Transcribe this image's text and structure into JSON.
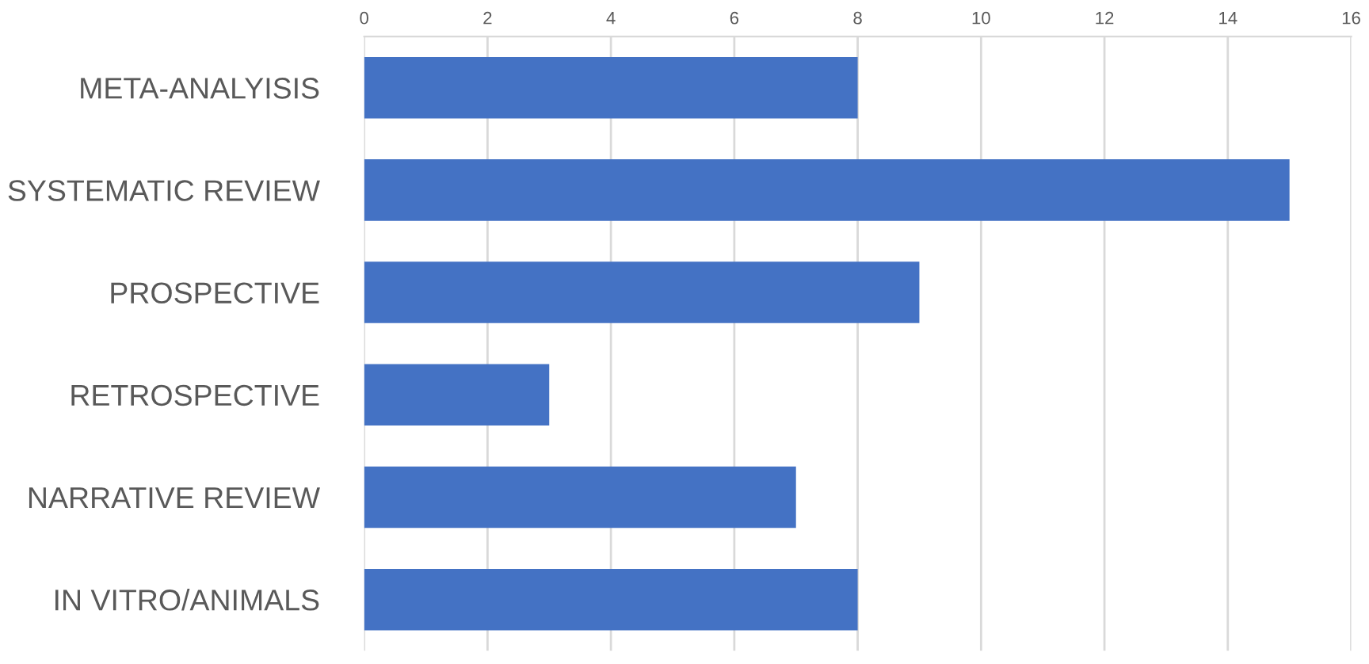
{
  "chart_data": {
    "type": "bar",
    "orientation": "horizontal",
    "categories": [
      "META-ANALYISIS",
      "SYSTEMATIC REVIEW",
      "PROSPECTIVE",
      "RETROSPECTIVE",
      "NARRATIVE REVIEW",
      "IN VITRO/ANIMALS"
    ],
    "values": [
      8,
      15,
      9,
      3,
      7,
      8
    ],
    "color": "#4472c4",
    "xlim": [
      0,
      16
    ],
    "xticks": [
      0,
      2,
      4,
      6,
      8,
      10,
      12,
      14,
      16
    ],
    "grid": "x"
  }
}
